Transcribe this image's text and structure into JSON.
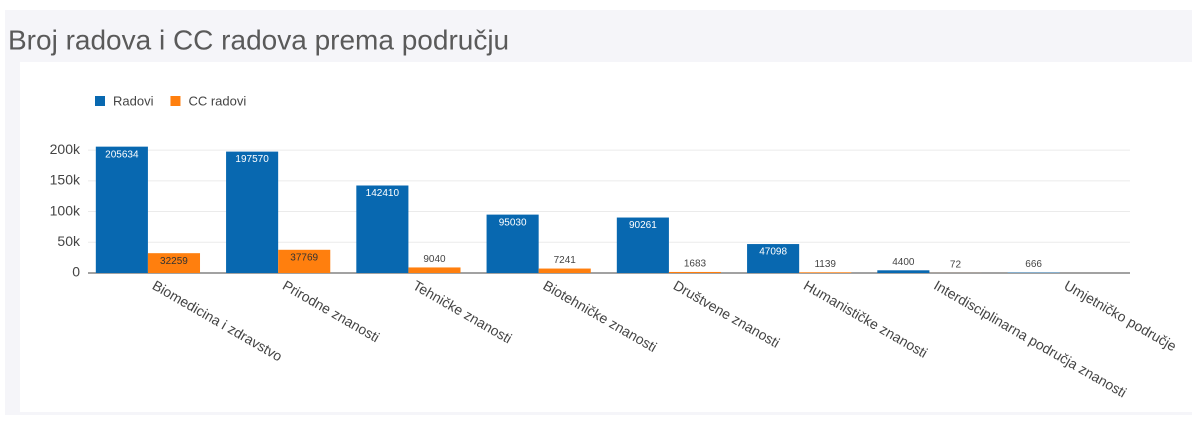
{
  "chart_data": {
    "type": "bar",
    "title": "Broj radova i CC radova prema području",
    "categories": [
      "Biomedicina i zdravstvo",
      "Prirodne znanosti",
      "Tehničke znanosti",
      "Biotehničke znanosti",
      "Društvene znanosti",
      "Humanističke znanosti",
      "Interdisciplinarna područja znanosti",
      "Umjetničko područje"
    ],
    "series": [
      {
        "name": "Radovi",
        "color": "#0868b0",
        "values": [
          205634,
          197570,
          142410,
          95030,
          90261,
          47098,
          4400,
          666
        ]
      },
      {
        "name": "CC radovi",
        "color": "#ff7f0e",
        "values": [
          32259,
          37769,
          9040,
          7241,
          1683,
          1139,
          72,
          null
        ]
      }
    ],
    "ylim": [
      0,
      216456
    ],
    "yticks": [
      0,
      {
        "value": 50000,
        "label": "50k"
      },
      {
        "value": 100000,
        "label": "100k"
      },
      {
        "value": 150000,
        "label": "150k"
      },
      {
        "value": 200000,
        "label": "200k"
      }
    ],
    "grid": true,
    "legend": "top-left"
  }
}
